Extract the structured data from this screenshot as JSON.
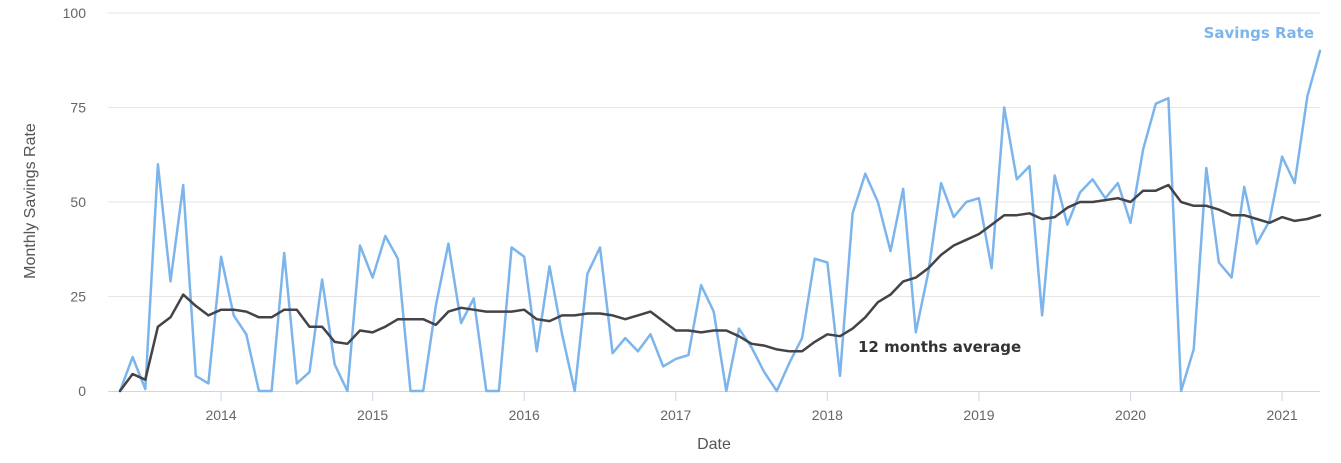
{
  "chart_data": {
    "type": "line",
    "xlabel": "Date",
    "ylabel": "Monthly Savings Rate",
    "ylim": [
      0,
      100
    ],
    "yticks": [
      0,
      25,
      50,
      75,
      100
    ],
    "xlim": [
      "2013-05",
      "2021-04"
    ],
    "xticks": [
      "2014",
      "2015",
      "2016",
      "2017",
      "2018",
      "2019",
      "2020",
      "2021"
    ],
    "grid": "horizontal",
    "start": "2013-05",
    "series": [
      {
        "name": "Savings Rate",
        "color": "#7cb5ec",
        "values": [
          0,
          9,
          0.5,
          60,
          29,
          54.5,
          4,
          2,
          35.5,
          20,
          15,
          0,
          0,
          36.5,
          2,
          5,
          29.5,
          7,
          0,
          38.5,
          30,
          41,
          35,
          0,
          0,
          22.5,
          39,
          18,
          24.5,
          0,
          0,
          38,
          35.5,
          10.5,
          33,
          15,
          0,
          31,
          38,
          10,
          14,
          10.5,
          15,
          6.5,
          8.5,
          9.5,
          28,
          21,
          0,
          16.5,
          11.5,
          5,
          0,
          7.5,
          14,
          35,
          34,
          4,
          47,
          57.5,
          50,
          37,
          53.5,
          15.5,
          31.5,
          55,
          46,
          50,
          51,
          32.5,
          75,
          56,
          59.5,
          20,
          57,
          44,
          52.5,
          56,
          51,
          55,
          44.5,
          64,
          76,
          77.5,
          0,
          11,
          59,
          34,
          30,
          54,
          39,
          45,
          62,
          55,
          78,
          90
        ]
      },
      {
        "name": "12 months average",
        "color": "#434348",
        "values": [
          0,
          4.5,
          3,
          17,
          19.5,
          25.5,
          22.5,
          20,
          21.5,
          21.5,
          21,
          19.5,
          19.5,
          21.5,
          21.5,
          17,
          17,
          13,
          12.5,
          16,
          15.5,
          17,
          19,
          19,
          19,
          17.5,
          21,
          22,
          21.5,
          21,
          21,
          21,
          21.5,
          19,
          18.5,
          20,
          20,
          20.5,
          20.5,
          20,
          19,
          20,
          21,
          18.5,
          16,
          16,
          15.5,
          16,
          16,
          14.5,
          12.5,
          12,
          11,
          10.5,
          10.5,
          13,
          15,
          14.5,
          16.5,
          19.5,
          23.5,
          25.5,
          29,
          30,
          32.5,
          36,
          38.5,
          40,
          41.5,
          44,
          46.5,
          46.5,
          47,
          45.5,
          46,
          48.5,
          50,
          50,
          50.5,
          51,
          50,
          53,
          53,
          54.5,
          50,
          49,
          49,
          48,
          46.5,
          46.5,
          45.5,
          44.5,
          46,
          45,
          45.5,
          46.5
        ]
      }
    ],
    "labels": {
      "savings_rate": "Savings Rate",
      "average": "12 months average"
    }
  }
}
